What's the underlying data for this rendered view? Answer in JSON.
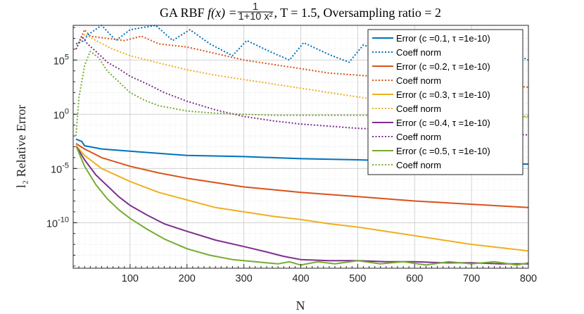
{
  "chart_data": {
    "type": "line",
    "title": {
      "prefix": "GA RBF ",
      "func": "f(x) = ",
      "numerator": "1",
      "denominator": "1+10 x²",
      "suffix": ", T = 1.5, Oversampling ratio = 2"
    },
    "xlabel": "N",
    "ylabel": "l₂ Relative Error",
    "xlim": [
      0,
      800
    ],
    "ylim_log10": [
      -14.2,
      8.2
    ],
    "yscale": "log",
    "grid": true,
    "minor_grid": true,
    "legend_position": "top-right",
    "x_ticks": [
      100,
      200,
      300,
      400,
      500,
      600,
      700,
      800
    ],
    "x_tick_labels": [
      "100",
      "200",
      "300",
      "400",
      "500",
      "600",
      "700",
      "800"
    ],
    "y_ticks_log10": [
      5,
      0,
      -5,
      -10
    ],
    "y_tick_labels": [
      {
        "base": "10",
        "exp": "5"
      },
      {
        "base": "10",
        "exp": "0"
      },
      {
        "base": "10",
        "exp": "-5"
      },
      {
        "base": "10",
        "exp": "-10"
      }
    ],
    "series": [
      {
        "name": "Error (c =0.1, τ =1e-10)",
        "kind": "error",
        "color": "#0072BD",
        "x": [
          5,
          15,
          20,
          50,
          100,
          200,
          300,
          400,
          500,
          600,
          700,
          800
        ],
        "log10_y": [
          -2.3,
          -2.5,
          -2.9,
          -3.2,
          -3.4,
          -3.8,
          -3.9,
          -4.1,
          -4.2,
          -4.35,
          -4.5,
          -4.6
        ]
      },
      {
        "name": "Coeff norm",
        "kind": "coeff",
        "color": "#0072BD",
        "x": [
          5,
          20,
          25,
          50,
          75,
          100,
          145,
          175,
          205,
          240,
          280,
          305,
          345,
          380,
          405,
          450,
          485,
          510,
          560,
          590,
          615,
          660,
          690,
          725,
          760,
          800
        ],
        "log10_y": [
          6.5,
          6.8,
          7.3,
          8.2,
          6.8,
          7.8,
          8.2,
          6.8,
          7.8,
          6.5,
          5.4,
          6.8,
          5.8,
          5.0,
          6.6,
          5.5,
          4.8,
          6.4,
          5.4,
          6.6,
          5.8,
          5.1,
          6.1,
          5.2,
          5.9,
          5.0
        ]
      },
      {
        "name": "Error (c =0.2, τ =1e-10)",
        "kind": "error",
        "color": "#D95319",
        "x": [
          5,
          20,
          50,
          100,
          150,
          200,
          300,
          400,
          500,
          600,
          700,
          800
        ],
        "log10_y": [
          -2.7,
          -3.2,
          -4.0,
          -4.8,
          -5.4,
          -5.9,
          -6.7,
          -7.2,
          -7.6,
          -8.0,
          -8.3,
          -8.6
        ]
      },
      {
        "name": "Coeff norm",
        "kind": "coeff",
        "color": "#D95319",
        "x": [
          5,
          20,
          30,
          60,
          90,
          120,
          150,
          200,
          250,
          300,
          350,
          400,
          450,
          500,
          550,
          600,
          650,
          700,
          750,
          800
        ],
        "log10_y": [
          6.0,
          7.8,
          7.2,
          7.0,
          6.8,
          7.2,
          6.5,
          6.2,
          5.6,
          5.0,
          4.6,
          4.2,
          3.8,
          3.6,
          3.4,
          3.3,
          3.1,
          2.9,
          2.7,
          2.5
        ]
      },
      {
        "name": "Error (c =0.3, τ =1e-10)",
        "kind": "error",
        "color": "#EDB120",
        "x": [
          5,
          20,
          50,
          100,
          150,
          200,
          250,
          300,
          350,
          400,
          450,
          500,
          550,
          600,
          650,
          700,
          750,
          800
        ],
        "log10_y": [
          -2.9,
          -3.8,
          -5.0,
          -6.2,
          -7.2,
          -7.9,
          -8.6,
          -9.0,
          -9.4,
          -9.7,
          -10.1,
          -10.4,
          -10.8,
          -11.2,
          -11.6,
          -12.0,
          -12.3,
          -12.6
        ]
      },
      {
        "name": "Coeff norm",
        "kind": "coeff",
        "color": "#EDB120",
        "x": [
          5,
          20,
          40,
          70,
          100,
          130,
          160,
          200,
          250,
          300,
          350,
          400,
          450,
          500,
          550,
          600,
          650,
          700,
          750,
          800
        ],
        "log10_y": [
          6.0,
          7.4,
          6.8,
          6.0,
          5.4,
          5.0,
          4.6,
          4.1,
          3.6,
          3.2,
          2.8,
          2.4,
          2.0,
          1.6,
          1.2,
          0.9,
          0.6,
          0.3,
          0.0,
          -0.3
        ]
      },
      {
        "name": "Error (c =0.4, τ =1e-10)",
        "kind": "error",
        "color": "#7E2F8E",
        "x": [
          5,
          20,
          40,
          60,
          80,
          100,
          130,
          160,
          200,
          250,
          300,
          340,
          370,
          400,
          450,
          500,
          550,
          600,
          650,
          700,
          750,
          800
        ],
        "log10_y": [
          -2.9,
          -4.2,
          -5.6,
          -6.6,
          -7.6,
          -8.4,
          -9.3,
          -10.1,
          -10.8,
          -11.6,
          -12.2,
          -12.7,
          -13.1,
          -13.4,
          -13.5,
          -13.5,
          -13.6,
          -13.6,
          -13.7,
          -13.7,
          -13.8,
          -13.8
        ]
      },
      {
        "name": "Coeff norm",
        "kind": "coeff",
        "color": "#7E2F8E",
        "x": [
          5,
          15,
          25,
          40,
          60,
          80,
          100,
          130,
          160,
          200,
          250,
          300,
          350,
          400,
          450,
          500,
          550,
          600,
          650,
          700,
          750,
          800
        ],
        "log10_y": [
          6.0,
          7.2,
          6.5,
          5.8,
          4.8,
          4.2,
          3.5,
          2.8,
          2.0,
          1.2,
          0.4,
          -0.2,
          -0.6,
          -0.9,
          -1.1,
          -1.3,
          -1.4,
          -1.5,
          -1.6,
          -1.7,
          -1.8,
          -1.9
        ]
      },
      {
        "name": "Error (c =0.5, τ =1e-10)",
        "kind": "error",
        "color": "#77AC30",
        "x": [
          5,
          20,
          40,
          60,
          80,
          100,
          130,
          160,
          200,
          240,
          280,
          320,
          360,
          380,
          400,
          430,
          460,
          500,
          540,
          580,
          620,
          660,
          700,
          740,
          780,
          800
        ],
        "log10_y": [
          -2.9,
          -4.8,
          -6.5,
          -7.8,
          -8.8,
          -9.6,
          -10.6,
          -11.5,
          -12.4,
          -13.0,
          -13.4,
          -13.6,
          -13.8,
          -13.6,
          -13.9,
          -13.6,
          -13.8,
          -13.5,
          -13.8,
          -13.6,
          -13.9,
          -13.6,
          -13.8,
          -13.6,
          -13.9,
          -13.7
        ]
      },
      {
        "name": "Coeff norm",
        "kind": "coeff",
        "color": "#77AC30",
        "x": [
          5,
          10,
          20,
          30,
          45,
          60,
          80,
          100,
          125,
          150,
          200,
          250,
          300,
          350,
          400,
          500,
          600,
          700,
          800
        ],
        "log10_y": [
          -2.0,
          1.5,
          4.5,
          5.8,
          5.2,
          4.0,
          3.0,
          2.0,
          1.3,
          0.8,
          0.3,
          0.1,
          0.0,
          -0.1,
          -0.1,
          -0.1,
          -0.1,
          -0.2,
          -0.2
        ]
      }
    ]
  }
}
